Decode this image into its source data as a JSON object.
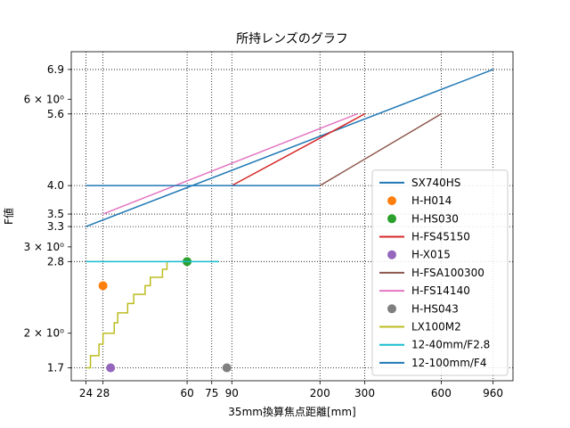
{
  "chart_data": {
    "type": "line",
    "title": "所持レンズのグラフ",
    "xlabel": "35mm換算焦点距離[mm]",
    "ylabel": "F値",
    "xscale": "log",
    "yscale": "log",
    "xlim": [
      21,
      1150
    ],
    "ylim": [
      1.6,
      7.5
    ],
    "grid": true,
    "legend_position": "lower-right",
    "x_ticks": [
      24,
      28,
      60,
      75,
      90,
      200,
      300,
      600,
      960
    ],
    "x_tick_labels": [
      "24",
      "28",
      "60",
      "75",
      "90",
      "200",
      "300",
      "600",
      "960"
    ],
    "y_ticks_labeled": [
      1.7,
      2.8,
      3.3,
      3.5,
      4.0,
      5.6,
      6.9
    ],
    "y_tick_labels": [
      "1.7",
      "2.8",
      "3.3",
      "3.5",
      "4.0",
      "5.6",
      "6.9"
    ],
    "y_ticks_log": [
      2,
      3,
      6
    ],
    "y_tick_log_labels": [
      "2 × 10⁰",
      "3 × 10⁰",
      "6 × 10⁰"
    ],
    "series": [
      {
        "name": "SX740HS",
        "color": "#1f77b4",
        "kind": "line",
        "x": [
          24,
          960
        ],
        "y": [
          3.3,
          6.9
        ]
      },
      {
        "name": "H-H014",
        "color": "#ff7f0e",
        "kind": "point",
        "x": [
          28
        ],
        "y": [
          2.5
        ]
      },
      {
        "name": "H-HS030",
        "color": "#2ca02c",
        "kind": "point",
        "x": [
          60
        ],
        "y": [
          2.8
        ]
      },
      {
        "name": "H-FS45150",
        "color": "#d62728",
        "kind": "line",
        "x": [
          90,
          300
        ],
        "y": [
          4.0,
          5.6
        ]
      },
      {
        "name": "H-X015",
        "color": "#9467bd",
        "kind": "point",
        "x": [
          30
        ],
        "y": [
          1.7
        ]
      },
      {
        "name": "H-FSA100300",
        "color": "#8c564b",
        "kind": "line",
        "x": [
          200,
          600
        ],
        "y": [
          4.0,
          5.6
        ]
      },
      {
        "name": "H-FS14140",
        "color": "#e377c2",
        "kind": "line",
        "x": [
          28,
          280
        ],
        "y": [
          3.5,
          5.6
        ]
      },
      {
        "name": "H-HS043",
        "color": "#7f7f7f",
        "kind": "point",
        "x": [
          86
        ],
        "y": [
          1.7
        ]
      },
      {
        "name": "LX100M2",
        "color": "#bcbd22",
        "kind": "step",
        "x": [
          24,
          25,
          26,
          27,
          28,
          29,
          31,
          32,
          34,
          35,
          37,
          39,
          41,
          43,
          45,
          48,
          50
        ],
        "y": [
          1.7,
          1.8,
          1.8,
          1.9,
          2.0,
          2.0,
          2.1,
          2.2,
          2.2,
          2.3,
          2.4,
          2.4,
          2.5,
          2.6,
          2.6,
          2.7,
          2.8
        ]
      },
      {
        "name": "12-40mm/F2.8",
        "color": "#17becf",
        "kind": "line",
        "x": [
          24,
          80
        ],
        "y": [
          2.8,
          2.8
        ]
      },
      {
        "name": "12-100mm/F4",
        "color": "#1f77b4",
        "kind": "line",
        "x": [
          24,
          200
        ],
        "y": [
          4.0,
          4.0
        ]
      }
    ]
  }
}
